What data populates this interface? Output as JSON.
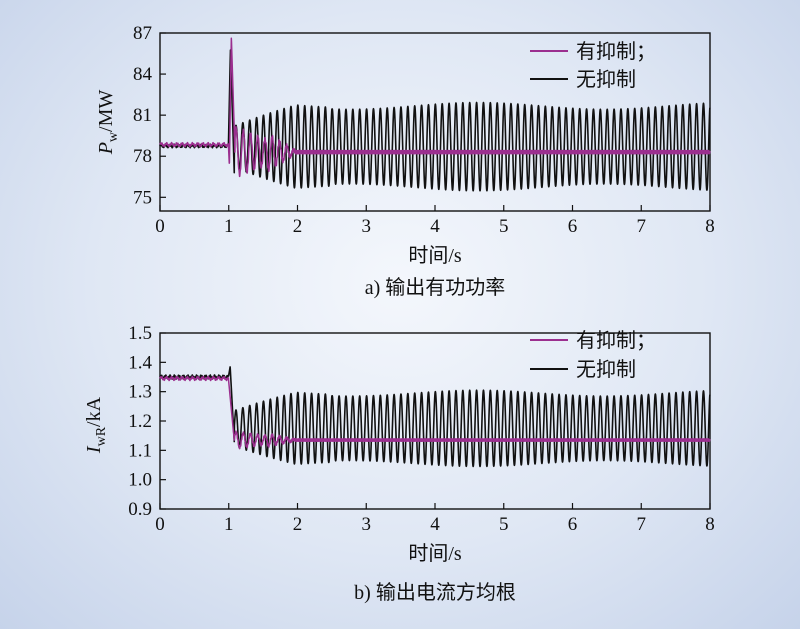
{
  "figure": {
    "colors": {
      "suppressed": "#9b2f8f",
      "unsuppressed": "#111111"
    }
  },
  "chart_data": [
    {
      "type": "line",
      "caption": "a) 输出有功功率",
      "xlabel": "时间/s",
      "ylabel_main": "P",
      "ylabel_sub": "w",
      "ylabel_unit": "/MW",
      "xlim": [
        0,
        8
      ],
      "ylim": [
        74,
        87
      ],
      "xticks": [
        0,
        1,
        2,
        3,
        4,
        5,
        6,
        7,
        8
      ],
      "yticks": [
        75,
        78,
        81,
        84,
        87
      ],
      "grid": false,
      "legend_position": "top-right",
      "series": [
        {
          "name": "有抑制；",
          "color": "#9b2f8f",
          "pre": 78.85,
          "spike_peak": 86.7,
          "spike_dip": 77.3,
          "settle": 78.3,
          "osc_amp_early": 2.6,
          "osc_decay_end": 2.0
        },
        {
          "name": "无抑制",
          "color": "#111111",
          "pre": 78.75,
          "spike_peak": 85.8,
          "spike_dip": 76.8,
          "center": 78.7,
          "osc_amp": 3.1,
          "osc_freq_hz": 10,
          "range_min": 75.4,
          "range_max": 82.4
        }
      ]
    },
    {
      "type": "line",
      "caption": "b) 输出电流方均根",
      "xlabel": "时间/s",
      "ylabel_main": "I",
      "ylabel_sub": "wR",
      "ylabel_unit": "/kA",
      "xlim": [
        0,
        8
      ],
      "ylim": [
        0.9,
        1.5
      ],
      "xticks": [
        0,
        1,
        2,
        3,
        4,
        5,
        6,
        7,
        8
      ],
      "yticks": [
        0.9,
        1.0,
        1.1,
        1.2,
        1.3,
        1.4,
        1.5
      ],
      "yticklabels": [
        "0.9",
        "1.0",
        "1.1",
        "1.2",
        "1.3",
        "1.4",
        "1.5"
      ],
      "grid": false,
      "legend_position": "top-right",
      "series": [
        {
          "name": "有抑制；",
          "color": "#9b2f8f",
          "pre": 1.345,
          "settle": 1.135,
          "osc_amp_early": 0.04,
          "osc_decay_end": 2.0
        },
        {
          "name": "无抑制",
          "color": "#111111",
          "pre": 1.35,
          "spike_peak": 1.385,
          "center": 1.175,
          "osc_amp": 0.125,
          "osc_freq_hz": 10,
          "range_min": 1.03,
          "range_max": 1.33
        }
      ]
    }
  ]
}
